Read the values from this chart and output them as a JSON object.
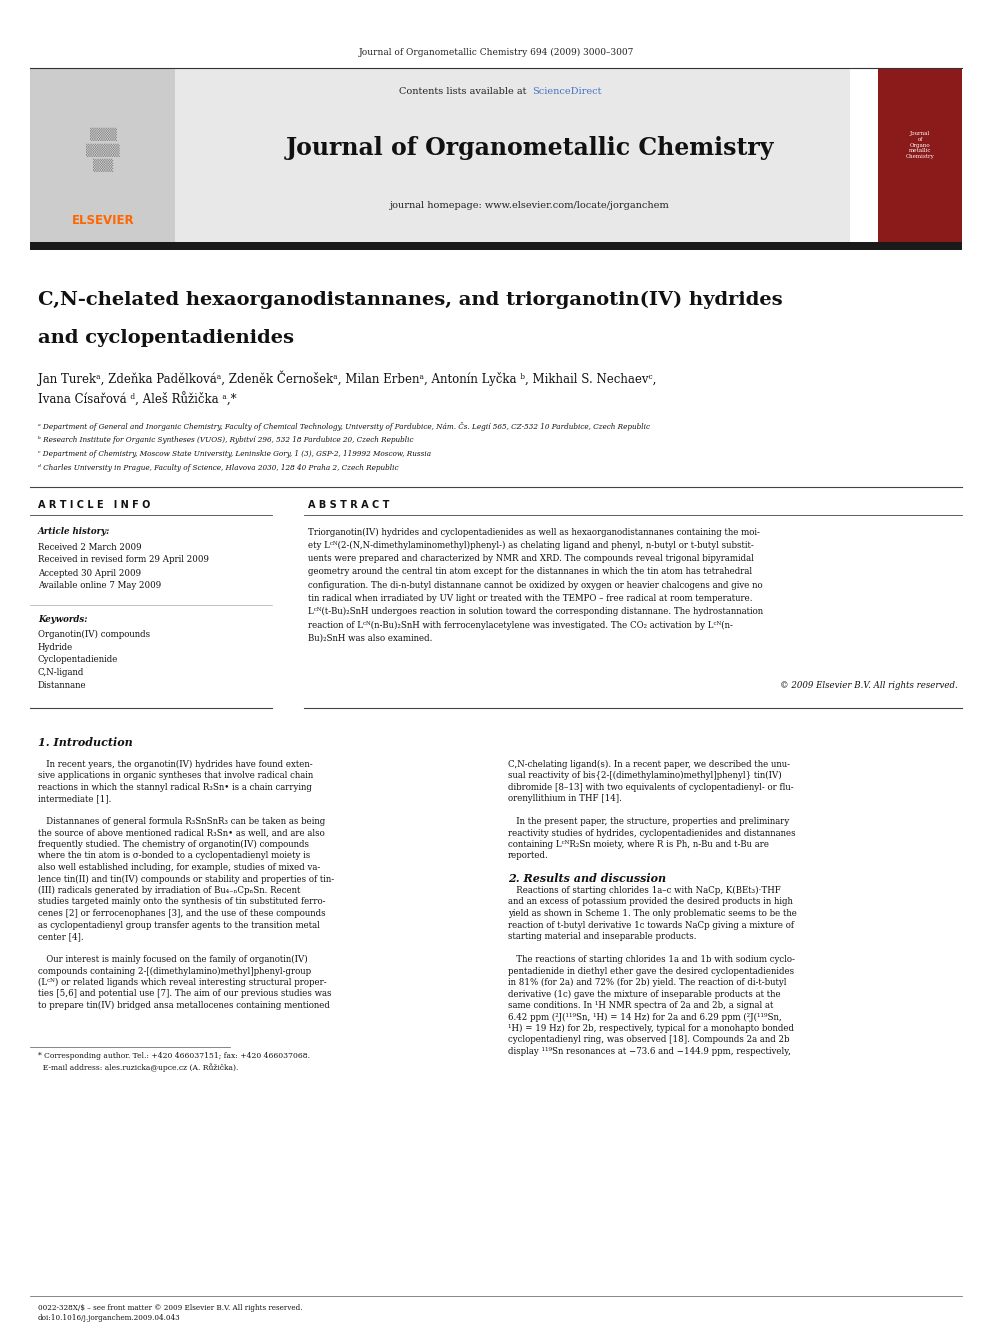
{
  "page_width": 9.92,
  "page_height": 13.23,
  "bg_color": "#ffffff",
  "journal_ref": "Journal of Organometallic Chemistry 694 (2009) 3000–3007",
  "sciencedirect_color": "#4472c4",
  "journal_name": "Journal of Organometallic Chemistry",
  "homepage_line": "journal homepage: www.elsevier.com/locate/jorganchem",
  "elsevier_color": "#ff6600",
  "header_bg": "#e8e8e8",
  "dark_bar_color": "#1a1a1a",
  "article_title_line1": "C,N-chelated hexaorganodistannanes, and triorganotin(IV) hydrides",
  "article_title_line2": "and cyclopentadienides",
  "authors": "Jan Turekᵃ, Zdeňka Padělkováᵃ, Zdeněk Černošekᵃ, Milan Erbenᵃ, Antonín Lyčka ᵇ, Mikhail S. Nechaevᶜ,",
  "authors2": "Ivana Císařová ᵈ, Aleš Růžička ᵃ,*",
  "affil_a": "ᵃ Department of General and Inorganic Chemistry, Faculty of Chemical Technology, University of Pardubice, Nám. Čs. Legií 565, CZ-532 10 Pardubice, Czech Republic",
  "affil_b": "ᵇ Research Institute for Organic Syntheses (VUOS), Rybitví 296, 532 18 Pardubice 20, Czech Republic",
  "affil_c": "ᶜ Department of Chemistry, Moscow State University, Leninskie Gory, 1 (3), GSP-2, 119992 Moscow, Russia",
  "affil_d": "ᵈ Charles University in Prague, Faculty of Science, Hlavova 2030, 128 40 Praha 2, Czech Republic",
  "article_info_header": "A R T I C L E   I N F O",
  "abstract_header": "A B S T R A C T",
  "article_history_label": "Article history:",
  "received": "Received 2 March 2009",
  "received_revised": "Received in revised form 29 April 2009",
  "accepted": "Accepted 30 April 2009",
  "available": "Available online 7 May 2009",
  "keywords_label": "Keywords:",
  "keywords": [
    "Organotin(IV) compounds",
    "Hydride",
    "Cyclopentadienide",
    "C,N-ligand",
    "Distannane"
  ],
  "copyright": "© 2009 Elsevier B.V. All rights reserved.",
  "intro_header": "1. Introduction",
  "results_header": "2. Results and discussion",
  "footer_line1": "0022-328X/$ – see front matter © 2009 Elsevier B.V. All rights reserved.",
  "footer_line2": "doi:10.1016/j.jorganchem.2009.04.043",
  "abstract_lines": [
    "Triorganotin(IV) hydrides and cyclopentadienides as well as hexaorganodistannanes containing the moi-",
    "ety Lᶜᴺ(2-(N,N-dimethylaminomethyl)phenyl-) as chelating ligand and phenyl, n-butyl or t-butyl substit-",
    "uents were prepared and characterized by NMR and XRD. The compounds reveal trigonal bipyramidal",
    "geometry around the central tin atom except for the distannanes in which the tin atom has tetrahedral",
    "configuration. The di-n-butyl distannane cannot be oxidized by oxygen or heavier chalcogens and give no",
    "tin radical when irradiated by UV light or treated with the TEMPO – free radical at room temperature.",
    "Lᶜᴺ(t-Bu)₂SnH undergoes reaction in solution toward the corresponding distannane. The hydrostannation",
    "reaction of Lᶜᴺ(n-Bu)₂SnH with ferrocenylacetylene was investigated. The CO₂ activation by Lᶜᴺ(n-",
    "Bu)₂SnH was also examined."
  ],
  "intro_col1_lines": [
    "   In recent years, the organotin(IV) hydrides have found exten-",
    "sive applications in organic syntheses that involve radical chain",
    "reactions in which the stannyl radical R₃Sn• is a chain carrying",
    "intermediate [1].",
    "",
    "   Distannanes of general formula R₃SnSnR₃ can be taken as being",
    "the source of above mentioned radical R₃Sn• as well, and are also",
    "frequently studied. The chemistry of organotin(IV) compounds",
    "where the tin atom is σ-bonded to a cyclopentadienyl moiety is",
    "also well established including, for example, studies of mixed va-",
    "lence tin(II) and tin(IV) compounds or stability and properties of tin-",
    "(III) radicals generated by irradiation of Bu₄₋ₙCpₙSn. Recent",
    "studies targeted mainly onto the synthesis of tin substituted ferro-",
    "cenes [2] or ferrocenophanes [3], and the use of these compounds",
    "as cyclopentadienyl group transfer agents to the transition metal",
    "center [4].",
    "",
    "   Our interest is mainly focused on the family of organotin(IV)",
    "compounds containing 2-[(dimethylamino)methyl]phenyl-group",
    "(Lᶜᴺ) or related ligands which reveal interesting structural proper-",
    "ties [5,6] and potential use [7]. The aim of our previous studies was",
    "to prepare tin(IV) bridged ansa metallocenes containing mentioned"
  ],
  "intro_col2_lines": [
    "C,N-chelating ligand(s). In a recent paper, we described the unu-",
    "sual reactivity of bis{2-[(dimethylamino)methyl]phenyl} tin(IV)",
    "dibromide [8–13] with two equivalents of cyclopentadienyl- or flu-",
    "orenyllithium in THF [14].",
    "",
    "   In the present paper, the structure, properties and preliminary",
    "reactivity studies of hydrides, cyclopentadienides and distannanes",
    "containing LᶜᴺR₂Sn moiety, where R is Ph, n-Bu and t-Bu are",
    "reported."
  ],
  "results_col2_lines": [
    "   Reactions of starting chlorides 1a–c with NaCp, K(BEt₃)·THF",
    "and an excess of potassium provided the desired products in high",
    "yield as shown in Scheme 1. The only problematic seems to be the",
    "reaction of t-butyl derivative 1c towards NaCp giving a mixture of",
    "starting material and inseparable products.",
    "",
    "   The reactions of starting chlorides 1a and 1b with sodium cyclo-",
    "pentadienide in diethyl ether gave the desired cyclopentadienides",
    "in 81% (for 2a) and 72% (for 2b) yield. The reaction of di-t-butyl",
    "derivative (1c) gave the mixture of inseparable products at the",
    "same conditions. In ¹H NMR spectra of 2a and 2b, a signal at",
    "6.42 ppm (²J(¹¹⁹Sn, ¹H) = 14 Hz) for 2a and 6.29 ppm (²J(¹¹⁹Sn,",
    "¹H) = 19 Hz) for 2b, respectively, typical for a monohapto bonded",
    "cyclopentadienyl ring, was observed [18]. Compounds 2a and 2b",
    "display ¹¹⁹Sn resonances at −73.6 and −144.9 ppm, respectively,"
  ],
  "footnote_lines": [
    "* Corresponding author. Tel.: +420 466037151; fax: +420 466037068.",
    "  E-mail address: ales.ruzicka@upce.cz (A. Růžička)."
  ]
}
